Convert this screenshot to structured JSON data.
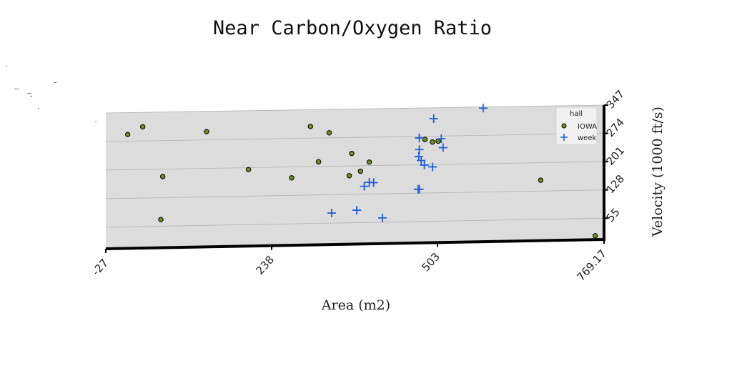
{
  "chart_data": {
    "type": "scatter",
    "title": "Near Carbon/Oxygen Ratio",
    "xlabel": "Area (m2)",
    "ylabel": "Velocity (1000 ft/s)",
    "x_ticks": [
      "-27",
      "238",
      "503",
      "769.17"
    ],
    "y_ticks": [
      "55",
      "128",
      "201",
      "274",
      "347"
    ],
    "xlim": [
      -27,
      769.17
    ],
    "ylim": [
      0,
      347
    ],
    "grid": true,
    "legend": {
      "title": "hall",
      "position": "top-right"
    },
    "series": [
      {
        "name": "IOWA",
        "marker": "circle",
        "color": "#6b8e23",
        "points": [
          [
            8,
            291
          ],
          [
            32,
            310
          ],
          [
            134,
            295
          ],
          [
            64,
            182
          ],
          [
            61,
            72
          ],
          [
            201,
            196
          ],
          [
            270,
            173
          ],
          [
            300,
            304
          ],
          [
            313,
            213
          ],
          [
            330,
            287
          ],
          [
            366,
            233
          ],
          [
            362,
            176
          ],
          [
            380,
            187
          ],
          [
            394,
            210
          ],
          [
            483,
            266
          ],
          [
            495,
            259
          ],
          [
            504,
            261
          ],
          [
            668,
            156
          ],
          [
            755,
            10
          ]
        ]
      },
      {
        "name": "week",
        "marker": "plus",
        "color": "#1f5fd6",
        "points": [
          [
            334,
            81
          ],
          [
            374,
            87
          ],
          [
            415,
            66
          ],
          [
            386,
            148
          ],
          [
            394,
            158
          ],
          [
            401,
            157
          ],
          [
            472,
            138
          ],
          [
            474,
            138
          ],
          [
            474,
            270
          ],
          [
            474,
            240
          ],
          [
            473,
            222
          ],
          [
            477,
            212
          ],
          [
            482,
            200
          ],
          [
            495,
            195
          ],
          [
            497,
            319
          ],
          [
            509,
            267
          ],
          [
            512,
            244
          ],
          [
            576,
            344
          ]
        ]
      }
    ]
  }
}
